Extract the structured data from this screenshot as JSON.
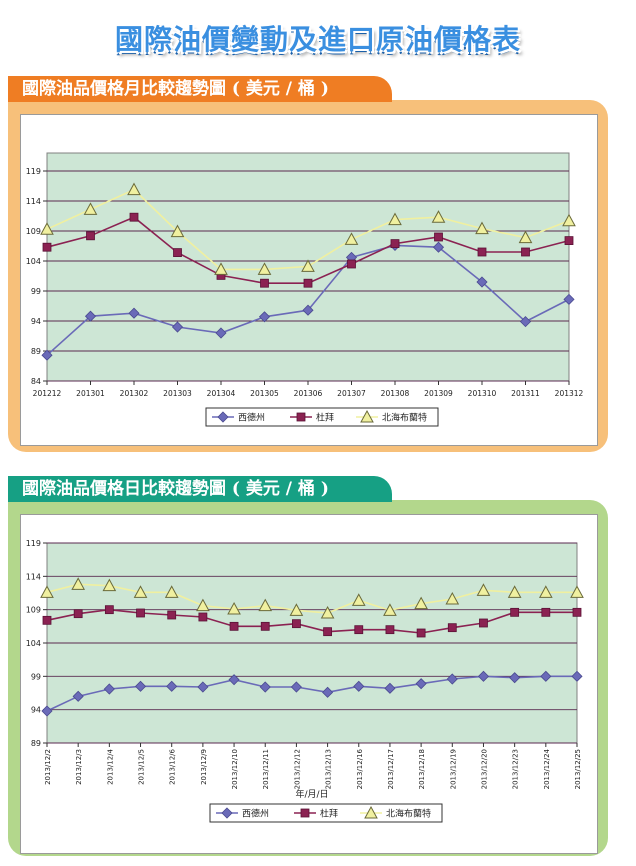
{
  "page_title": "國際油價變動及進口原油價格表",
  "chart_data": [
    {
      "type": "line",
      "title": "國際油品價格月比較趨勢圖 ( 美元 / 桶 )",
      "xlabel": "",
      "ylabel": "",
      "categories": [
        "201212",
        "201301",
        "201302",
        "201303",
        "201304",
        "201305",
        "201306",
        "201307",
        "201308",
        "201309",
        "201310",
        "201311",
        "201312"
      ],
      "yticks": [
        84,
        89,
        94,
        99,
        104,
        109,
        114,
        119
      ],
      "ylim": [
        84,
        122
      ],
      "grid": true,
      "legend_position": "bottom",
      "series": [
        {
          "name": "西德州",
          "color": "#6a6ab8",
          "marker": "diamond",
          "values": [
            88.3,
            94.8,
            95.3,
            93.0,
            92.0,
            94.7,
            95.8,
            104.6,
            106.6,
            106.3,
            100.5,
            93.9,
            97.6
          ]
        },
        {
          "name": "杜拜",
          "color": "#8b2252",
          "marker": "square",
          "values": [
            106.3,
            108.2,
            111.3,
            105.4,
            101.6,
            100.3,
            100.3,
            103.5,
            106.9,
            108.0,
            105.5,
            105.5,
            107.4
          ]
        },
        {
          "name": "北海布蘭特",
          "color": "#f0f0a0",
          "marker": "triangle",
          "values": [
            109.3,
            112.6,
            115.9,
            108.9,
            102.6,
            102.6,
            103.1,
            107.6,
            110.9,
            111.3,
            109.4,
            107.9,
            110.7
          ]
        }
      ]
    },
    {
      "type": "line",
      "title": "國際油品價格日比較趨勢圖 ( 美元 / 桶 )",
      "xlabel": "年/月/日",
      "ylabel": "",
      "categories": [
        "2013/12/2",
        "2013/12/3",
        "2013/12/4",
        "2013/12/5",
        "2013/12/6",
        "2013/12/9",
        "2013/12/10",
        "2013/12/11",
        "2013/12/12",
        "2013/12/13",
        "2013/12/16",
        "2013/12/17",
        "2013/12/18",
        "2013/12/19",
        "2013/12/20",
        "2013/12/23",
        "2013/12/24",
        "2013/12/25"
      ],
      "yticks": [
        89,
        94,
        99,
        104,
        109,
        114,
        119
      ],
      "ylim": [
        89,
        119
      ],
      "grid": true,
      "legend_position": "bottom",
      "series": [
        {
          "name": "西德州",
          "color": "#6a6ab8",
          "marker": "diamond",
          "values": [
            93.8,
            96.0,
            97.1,
            97.5,
            97.5,
            97.4,
            98.5,
            97.4,
            97.4,
            96.6,
            97.5,
            97.2,
            97.9,
            98.6,
            99.0,
            98.8,
            99.0,
            99.0
          ]
        },
        {
          "name": "杜拜",
          "color": "#8b2252",
          "marker": "square",
          "values": [
            107.4,
            108.4,
            109.0,
            108.5,
            108.2,
            107.9,
            106.5,
            106.5,
            106.9,
            105.7,
            106.0,
            106.0,
            105.5,
            106.3,
            107.0,
            108.6,
            108.6,
            108.6
          ]
        },
        {
          "name": "北海布蘭特",
          "color": "#f0f0a0",
          "marker": "triangle",
          "values": [
            111.6,
            112.8,
            112.6,
            111.6,
            111.6,
            109.6,
            109.1,
            109.6,
            108.9,
            108.5,
            110.4,
            108.9,
            109.9,
            110.6,
            111.9,
            111.6,
            111.6,
            111.6
          ]
        }
      ]
    }
  ]
}
